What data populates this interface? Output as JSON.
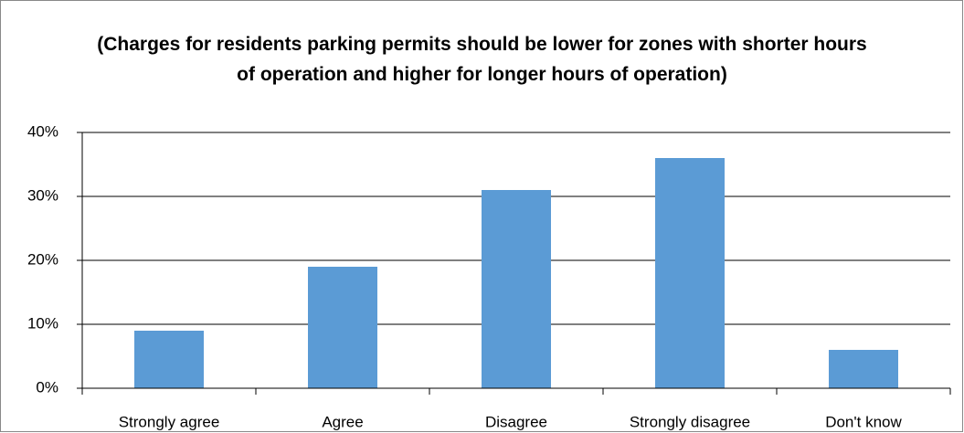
{
  "chart_data": {
    "type": "bar",
    "title": "(Charges for residents parking permits should be lower for zones with shorter hours of operation and higher for longer hours of operation)",
    "categories": [
      "Strongly agree",
      "Agree",
      "Disagree",
      "Strongly disagree",
      "Don't know"
    ],
    "values": [
      9,
      19,
      31,
      36,
      6
    ],
    "color": "#5b9bd5",
    "ylim": [
      0,
      40
    ],
    "yticks": [
      {
        "value": 0,
        "label": "0%"
      },
      {
        "value": 10,
        "label": "10%"
      },
      {
        "value": 20,
        "label": "20%"
      },
      {
        "value": 30,
        "label": "30%"
      },
      {
        "value": 40,
        "label": "40%"
      }
    ],
    "grid": true
  }
}
